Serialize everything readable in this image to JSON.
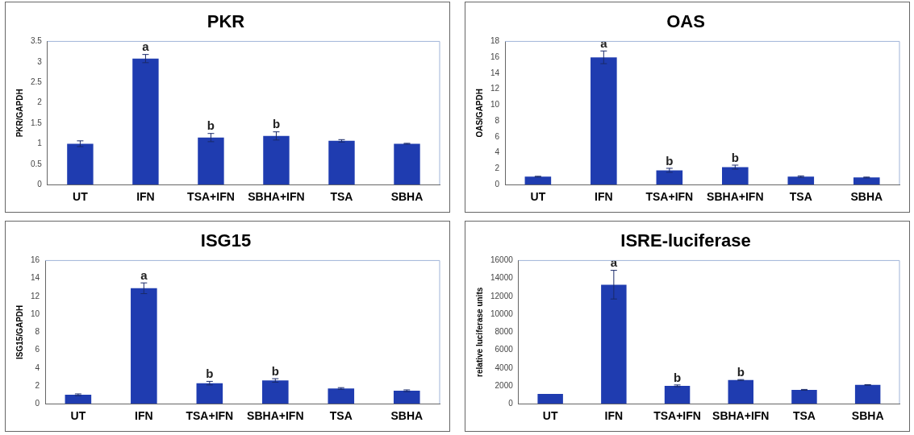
{
  "chart_data": [
    {
      "type": "bar",
      "title": "PKR",
      "ylabel": "PKR/GAPDH",
      "categories": [
        "UT",
        "IFN",
        "TSA+IFN",
        "SBHA+IFN",
        "TSA",
        "SBHA"
      ],
      "values": [
        1.0,
        3.08,
        1.15,
        1.19,
        1.07,
        1.0
      ],
      "errors": [
        0.07,
        0.1,
        0.1,
        0.1,
        0.03,
        0.01
      ],
      "color": "#1f3cb0",
      "ylim": [
        0,
        3.5
      ],
      "yticks": [
        0,
        0.5,
        1,
        1.5,
        2,
        2.5,
        3,
        3.5
      ],
      "grid": false,
      "legend": false,
      "annotations": [
        {
          "text": "a",
          "x": "IFN",
          "y": 3.18
        },
        {
          "text": "b",
          "x": "TSA+IFN",
          "y": 1.25
        },
        {
          "text": "b",
          "x": "SBHA+IFN",
          "y": 1.29
        }
      ]
    },
    {
      "type": "bar",
      "title": "OAS",
      "ylabel": "OAS/GAPDH",
      "categories": [
        "UT",
        "IFN",
        "TSA+IFN",
        "SBHA+IFN",
        "TSA",
        "SBHA"
      ],
      "values": [
        1.0,
        16.0,
        1.8,
        2.2,
        1.0,
        0.9
      ],
      "errors": [
        0.05,
        0.8,
        0.25,
        0.25,
        0.1,
        0.05
      ],
      "color": "#1f3cb0",
      "ylim": [
        0,
        18
      ],
      "yticks": [
        0,
        2,
        4,
        6,
        8,
        10,
        12,
        14,
        16,
        18
      ],
      "grid": false,
      "legend": false,
      "annotations": [
        {
          "text": "a",
          "x": "IFN",
          "y": 16.8
        },
        {
          "text": "b",
          "x": "TSA+IFN",
          "y": 2.05
        },
        {
          "text": "b",
          "x": "SBHA+IFN",
          "y": 2.45
        }
      ]
    },
    {
      "type": "bar",
      "title": "ISG15",
      "ylabel": "ISG15/GAPDH",
      "categories": [
        "UT",
        "IFN",
        "TSA+IFN",
        "SBHA+IFN",
        "TSA",
        "SBHA"
      ],
      "values": [
        1.0,
        12.9,
        2.3,
        2.6,
        1.7,
        1.45
      ],
      "errors": [
        0.1,
        0.6,
        0.2,
        0.2,
        0.1,
        0.1
      ],
      "color": "#1f3cb0",
      "ylim": [
        0,
        16
      ],
      "yticks": [
        0,
        2,
        4,
        6,
        8,
        10,
        12,
        14,
        16
      ],
      "grid": false,
      "legend": false,
      "annotations": [
        {
          "text": "a",
          "x": "IFN",
          "y": 13.5
        },
        {
          "text": "b",
          "x": "TSA+IFN",
          "y": 2.5
        },
        {
          "text": "b",
          "x": "SBHA+IFN",
          "y": 2.8
        }
      ]
    },
    {
      "type": "bar",
      "title": "ISRE-luciferase",
      "ylabel": "relative luciferase units",
      "categories": [
        "UT",
        "IFN",
        "TSA+IFN",
        "SBHA+IFN",
        "TSA",
        "SBHA"
      ],
      "values": [
        1100,
        13300,
        2000,
        2650,
        1550,
        2100
      ],
      "errors": [
        null,
        1600,
        100,
        50,
        50,
        30
      ],
      "color": "#1f3cb0",
      "ylim": [
        0,
        16000
      ],
      "yticks": [
        0,
        2000,
        4000,
        6000,
        8000,
        10000,
        12000,
        14000,
        16000
      ],
      "grid": false,
      "legend": false,
      "annotations": [
        {
          "text": "a",
          "x": "IFN",
          "y": 14900
        },
        {
          "text": "b",
          "x": "TSA+IFN",
          "y": 2100
        },
        {
          "text": "b",
          "x": "SBHA+IFN",
          "y": 2700
        }
      ]
    }
  ]
}
